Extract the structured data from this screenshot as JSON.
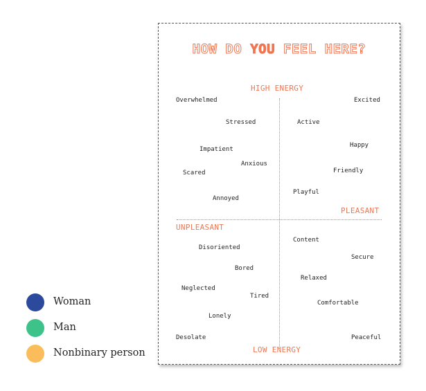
{
  "legend": {
    "items": [
      {
        "label": "Woman",
        "color": "#2b4a9c"
      },
      {
        "label": "Man",
        "color": "#3dc38a"
      },
      {
        "label": "Nonbinary person",
        "color": "#fbbd5b"
      }
    ]
  },
  "poster": {
    "title_pre": "HOW DO ",
    "title_em": "YOU",
    "title_post": " FEEL HERE?",
    "high_energy": "HIGH ENERGY",
    "low_energy": "LOW ENERGY",
    "pleasant": "PLEASANT",
    "unpleasant": "UNPLEASANT",
    "accent_color": "#ee7752",
    "words": [
      "Overwhelmed",
      "Excited",
      "Stressed",
      "Active",
      "Happy",
      "Impatient",
      "Anxious",
      "Friendly",
      "Scared",
      "Playful",
      "Annoyed",
      "Content",
      "Disoriented",
      "Secure",
      "Bored",
      "Relaxed",
      "Neglected",
      "Tired",
      "Comfortable",
      "Lonely",
      "Desolate",
      "Peaceful"
    ]
  }
}
